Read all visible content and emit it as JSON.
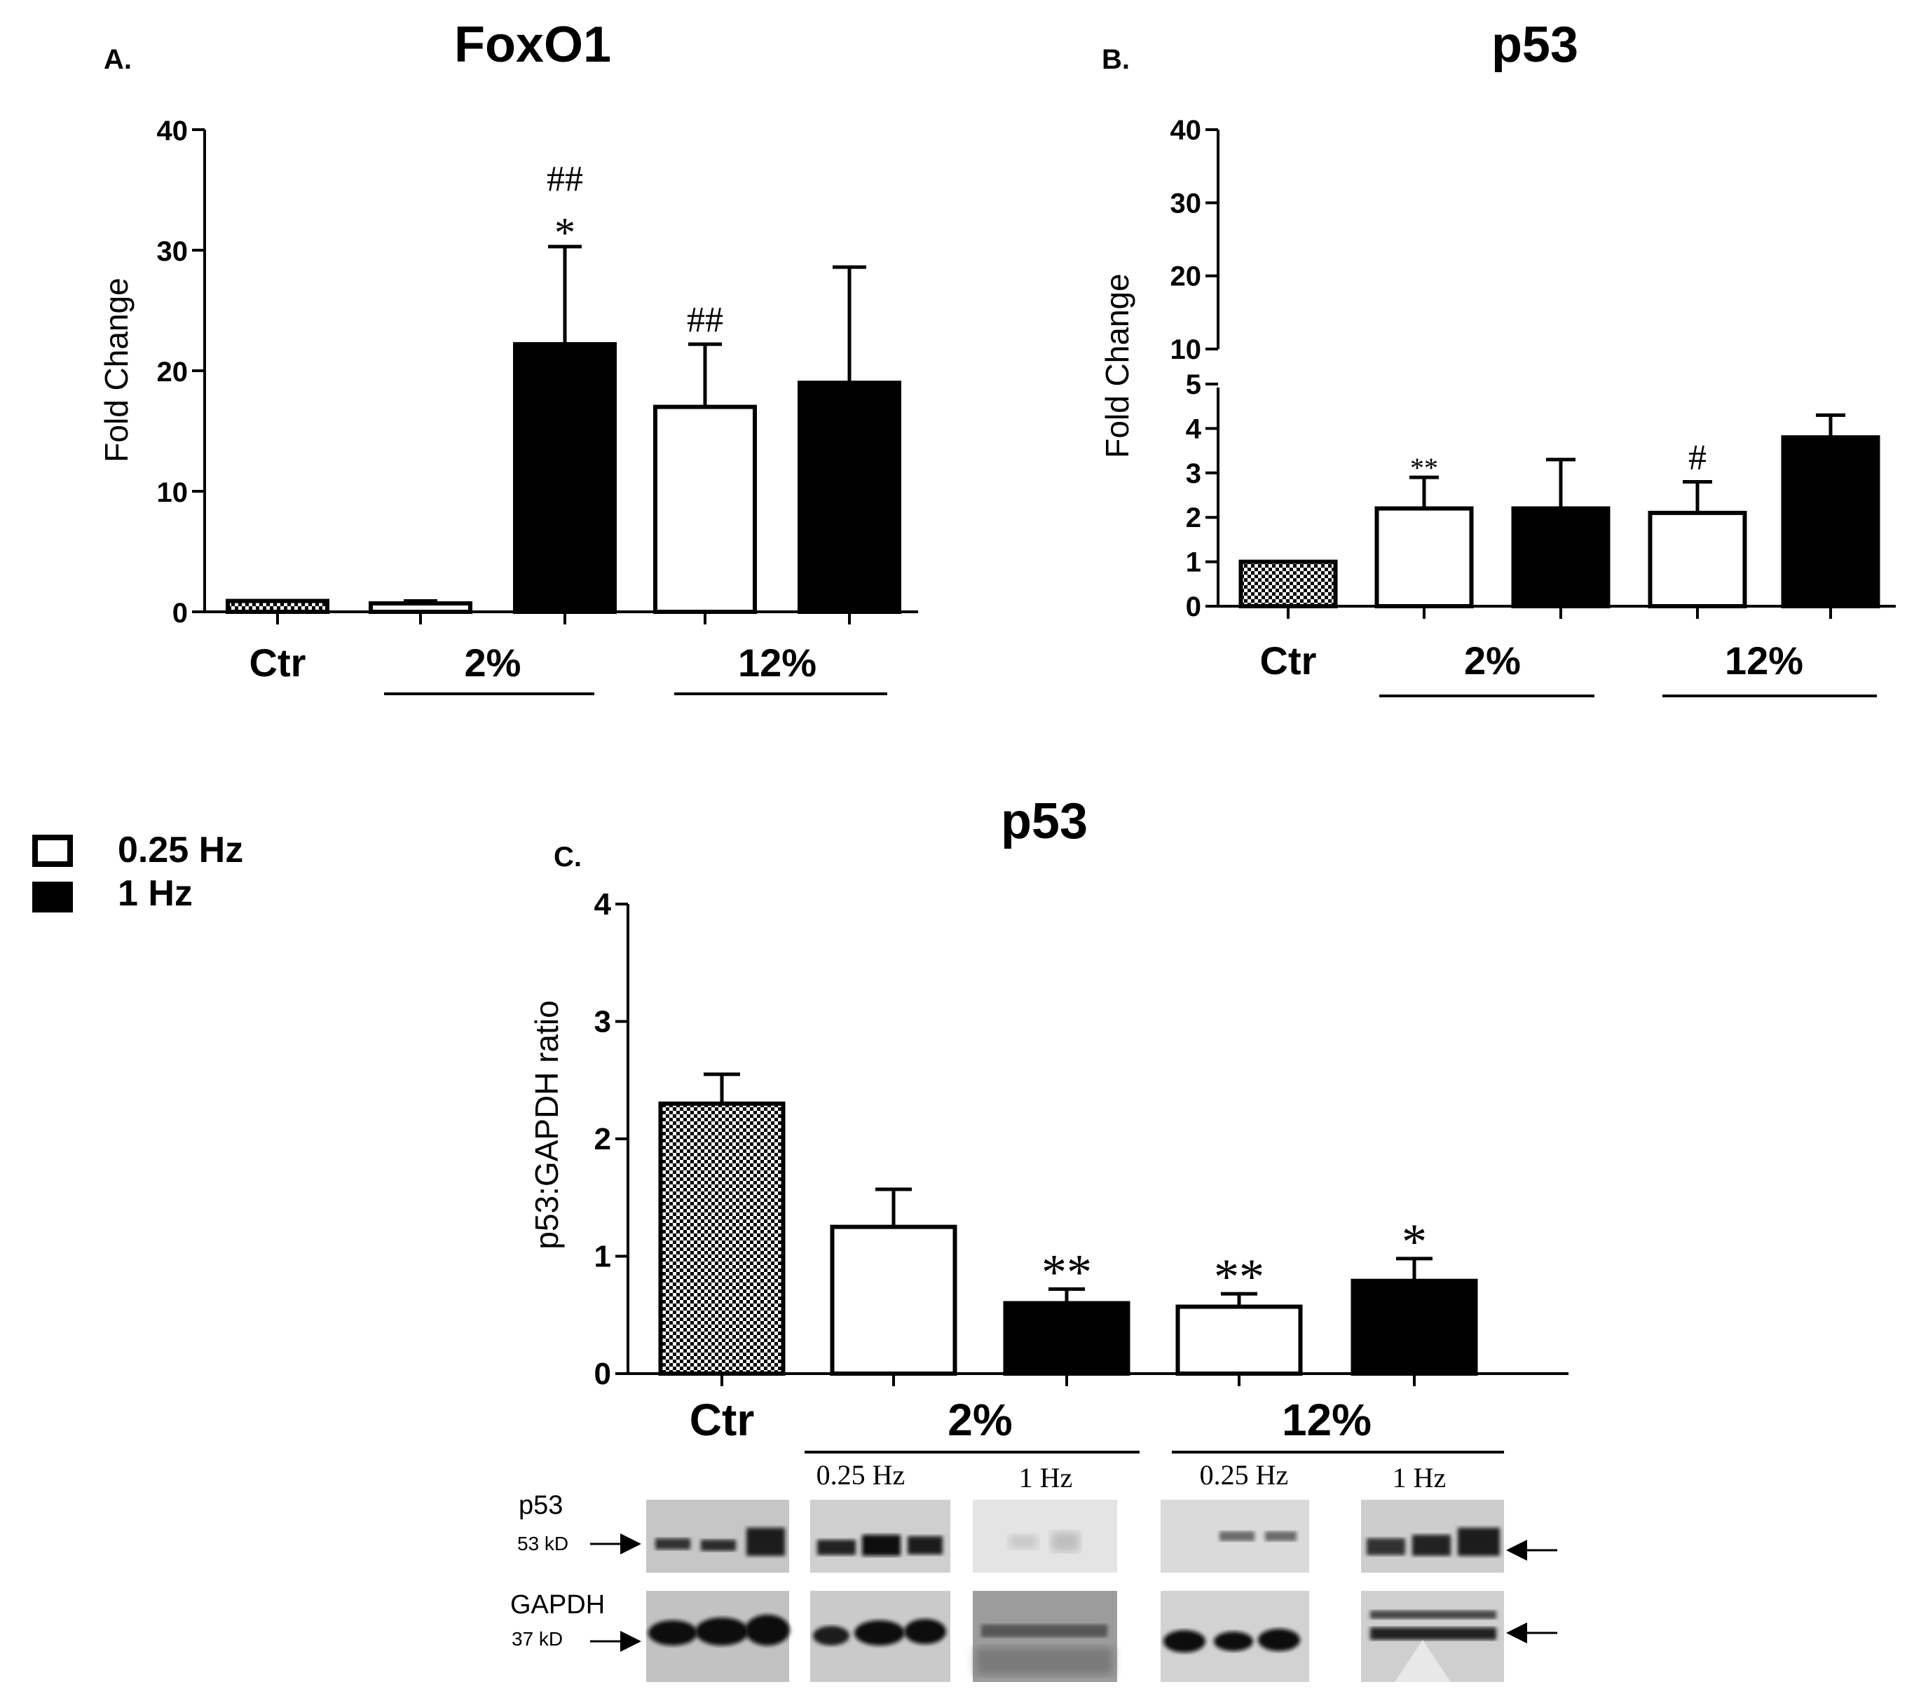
{
  "figure": {
    "legend": {
      "items": [
        {
          "label": "0.25 Hz",
          "fill": "#ffffff"
        },
        {
          "label": "1 Hz",
          "fill": "#000000"
        }
      ]
    },
    "colors": {
      "open_bar": "#ffffff",
      "filled_bar": "#000000",
      "control_bar": "checkered",
      "axis": "#000000"
    }
  },
  "chart_data": [
    {
      "panel": "A.",
      "type": "bar",
      "title": "FoxO1",
      "ylabel": "Fold Change",
      "ylim": [
        0,
        40
      ],
      "yticks": [
        0,
        10,
        20,
        30,
        40
      ],
      "group_labels": [
        "Ctr",
        "2%",
        "12%"
      ],
      "bars": [
        {
          "group": "Ctr",
          "style": "checkered",
          "value": 0.9,
          "error": 0
        },
        {
          "group": "2%",
          "style": "open",
          "value": 0.7,
          "error": 0.2
        },
        {
          "group": "2%",
          "style": "filled",
          "value": 22.2,
          "error": 8.1,
          "annotation": "##\n*"
        },
        {
          "group": "12%",
          "style": "open",
          "value": 17.0,
          "error": 5.2,
          "annotation": "##"
        },
        {
          "group": "12%",
          "style": "filled",
          "value": 19.0,
          "error": 9.6
        }
      ]
    },
    {
      "panel": "B.",
      "type": "bar",
      "title": "p53",
      "ylabel": "Fold Change",
      "broken_axis": true,
      "ylim_lower": [
        0,
        5
      ],
      "yticks_lower": [
        0,
        1,
        2,
        3,
        4,
        5
      ],
      "yticks_upper": [
        10,
        20,
        30,
        40
      ],
      "group_labels": [
        "Ctr",
        "2%",
        "12%"
      ],
      "bars": [
        {
          "group": "Ctr",
          "style": "checkered",
          "value": 1.0,
          "error": 0
        },
        {
          "group": "2%",
          "style": "open",
          "value": 2.2,
          "error": 0.7,
          "annotation": "**"
        },
        {
          "group": "2%",
          "style": "filled",
          "value": 2.2,
          "error": 1.1
        },
        {
          "group": "12%",
          "style": "open",
          "value": 2.1,
          "error": 0.7,
          "annotation": "#"
        },
        {
          "group": "12%",
          "style": "filled",
          "value": 3.8,
          "error": 0.5
        }
      ]
    },
    {
      "panel": "C.",
      "type": "bar",
      "title": "p53",
      "ylabel": "p53:GAPDH ratio",
      "ylim": [
        0,
        4
      ],
      "yticks": [
        0,
        1,
        2,
        3,
        4
      ],
      "group_labels": [
        "Ctr",
        "2%",
        "12%"
      ],
      "bars": [
        {
          "group": "Ctr",
          "style": "checkered",
          "value": 2.3,
          "error": 0.25
        },
        {
          "group": "2%",
          "style": "open",
          "value": 1.25,
          "error": 0.32
        },
        {
          "group": "2%",
          "style": "filled",
          "value": 0.6,
          "error": 0.12,
          "annotation": "**"
        },
        {
          "group": "12%",
          "style": "open",
          "value": 0.57,
          "error": 0.11,
          "annotation": "**"
        },
        {
          "group": "12%",
          "style": "filled",
          "value": 0.79,
          "error": 0.19,
          "annotation": "*"
        }
      ],
      "blot": {
        "sublabels": [
          "0.25 Hz",
          "1 Hz",
          "0.25 Hz",
          "1 Hz"
        ],
        "rows": [
          {
            "protein": "p53",
            "size": "53 kD"
          },
          {
            "protein": "GAPDH",
            "size": "37 kD"
          }
        ]
      }
    }
  ]
}
